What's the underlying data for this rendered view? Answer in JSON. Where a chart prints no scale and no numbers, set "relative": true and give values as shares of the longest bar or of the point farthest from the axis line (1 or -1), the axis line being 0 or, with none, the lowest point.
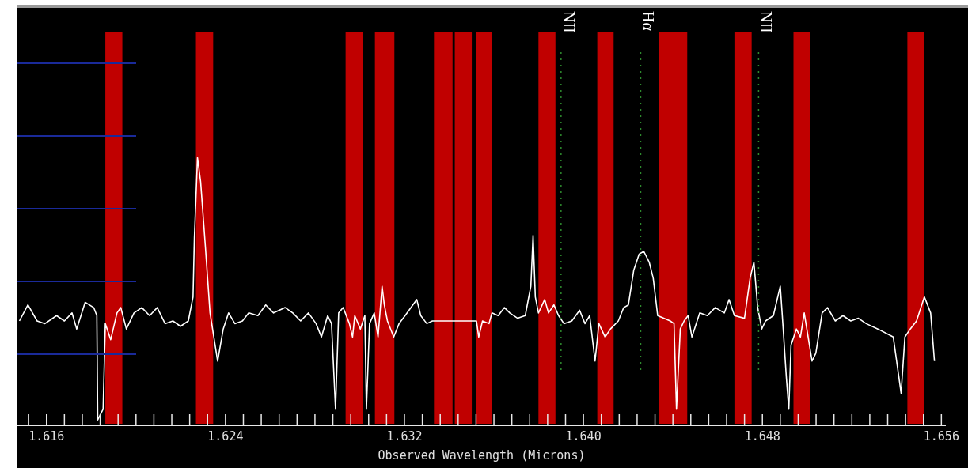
{
  "chart_data": {
    "type": "line",
    "relative": true,
    "xlabel": "Observed Wavelength (Microns)",
    "xlim": [
      1.6147,
      1.6562
    ],
    "xticks": [
      {
        "value": 1.6152,
        "label": null
      },
      {
        "value": 1.616,
        "label": "1.616"
      },
      {
        "value": 1.6168,
        "label": null
      },
      {
        "value": 1.6176,
        "label": null
      },
      {
        "value": 1.6184,
        "label": null
      },
      {
        "value": 1.6192,
        "label": null
      },
      {
        "value": 1.62,
        "label": null
      },
      {
        "value": 1.6208,
        "label": null
      },
      {
        "value": 1.6216,
        "label": null
      },
      {
        "value": 1.6224,
        "label": null
      },
      {
        "value": 1.6232,
        "label": null
      },
      {
        "value": 1.624,
        "label": "1.624"
      },
      {
        "value": 1.6248,
        "label": null
      },
      {
        "value": 1.6256,
        "label": null
      },
      {
        "value": 1.6264,
        "label": null
      },
      {
        "value": 1.6272,
        "label": null
      },
      {
        "value": 1.628,
        "label": null
      },
      {
        "value": 1.6288,
        "label": null
      },
      {
        "value": 1.6296,
        "label": null
      },
      {
        "value": 1.6304,
        "label": null
      },
      {
        "value": 1.6312,
        "label": null
      },
      {
        "value": 1.632,
        "label": "1.632"
      },
      {
        "value": 1.6328,
        "label": null
      },
      {
        "value": 1.6336,
        "label": null
      },
      {
        "value": 1.6344,
        "label": null
      },
      {
        "value": 1.6352,
        "label": null
      },
      {
        "value": 1.636,
        "label": null
      },
      {
        "value": 1.6368,
        "label": null
      },
      {
        "value": 1.6376,
        "label": null
      },
      {
        "value": 1.6384,
        "label": null
      },
      {
        "value": 1.6392,
        "label": null
      },
      {
        "value": 1.64,
        "label": "1.640"
      },
      {
        "value": 1.6408,
        "label": null
      },
      {
        "value": 1.6416,
        "label": null
      },
      {
        "value": 1.6424,
        "label": null
      },
      {
        "value": 1.6432,
        "label": null
      },
      {
        "value": 1.644,
        "label": null
      },
      {
        "value": 1.6448,
        "label": null
      },
      {
        "value": 1.6456,
        "label": null
      },
      {
        "value": 1.6464,
        "label": null
      },
      {
        "value": 1.6472,
        "label": null
      },
      {
        "value": 1.648,
        "label": "1.648"
      },
      {
        "value": 1.6488,
        "label": null
      },
      {
        "value": 1.6496,
        "label": null
      },
      {
        "value": 1.6504,
        "label": null
      },
      {
        "value": 1.6512,
        "label": null
      },
      {
        "value": 1.652,
        "label": null
      },
      {
        "value": 1.6528,
        "label": null
      },
      {
        "value": 1.6536,
        "label": null
      },
      {
        "value": 1.6544,
        "label": null
      },
      {
        "value": 1.6552,
        "label": null
      },
      {
        "value": 1.656,
        "label": "1.656"
      }
    ],
    "series": [
      {
        "color": "#ffffff",
        "x": [
          1.61479,
          1.61517,
          1.61558,
          1.61593,
          1.61645,
          1.6168,
          1.61714,
          1.61735,
          1.61773,
          1.61811,
          1.61825,
          1.61829,
          1.61853,
          1.61863,
          1.61887,
          1.61915,
          1.61932,
          1.61957,
          1.61991,
          1.62026,
          1.62061,
          1.62095,
          1.6213,
          1.62165,
          1.62199,
          1.62234,
          1.62248,
          1.62255,
          1.62261,
          1.62275,
          1.62289,
          1.6231,
          1.62331,
          1.62348,
          1.62365,
          1.6239,
          1.62414,
          1.62442,
          1.62476,
          1.62504,
          1.62545,
          1.6258,
          1.62615,
          1.62667,
          1.62701,
          1.62736,
          1.62771,
          1.62805,
          1.62829,
          1.62857,
          1.62874,
          1.62892,
          1.62906,
          1.62926,
          1.62954,
          1.62968,
          1.62978,
          1.63003,
          1.63023,
          1.6303,
          1.63044,
          1.63065,
          1.63082,
          1.631,
          1.6311,
          1.63124,
          1.63152,
          1.63176,
          1.63203,
          1.63255,
          1.63273,
          1.633,
          1.63325,
          1.63335,
          1.63522,
          1.63532,
          1.63549,
          1.63578,
          1.63591,
          1.63619,
          1.63647,
          1.63671,
          1.63706,
          1.6374,
          1.63765,
          1.63775,
          1.63785,
          1.63799,
          1.63827,
          1.63844,
          1.63868,
          1.63889,
          1.63913,
          1.63948,
          1.63983,
          1.64007,
          1.64028,
          1.64052,
          1.64069,
          1.64097,
          1.64121,
          1.64156,
          1.6418,
          1.64201,
          1.64225,
          1.64249,
          1.6427,
          1.64294,
          1.64312,
          1.64332,
          1.64388,
          1.64405,
          1.64416,
          1.64433,
          1.6445,
          1.64468,
          1.64485,
          1.6452,
          1.64554,
          1.64589,
          1.6463,
          1.64651,
          1.64675,
          1.6472,
          1.64745,
          1.64762,
          1.64779,
          1.64797,
          1.64814,
          1.64849,
          1.6488,
          1.64893,
          1.64907,
          1.64918,
          1.64928,
          1.64952,
          1.6497,
          1.64987,
          1.65022,
          1.65039,
          1.65067,
          1.65091,
          1.65126,
          1.6516,
          1.65195,
          1.65229,
          1.65264,
          1.65316,
          1.65385,
          1.6542,
          1.65437,
          1.65461,
          1.65489,
          1.65524,
          1.65552,
          1.65569
        ],
        "values": [
          0.39,
          0.45,
          0.39,
          0.38,
          0.41,
          0.39,
          0.42,
          0.36,
          0.46,
          0.44,
          0.41,
          0.02,
          0.06,
          0.38,
          0.32,
          0.42,
          0.44,
          0.36,
          0.42,
          0.44,
          0.41,
          0.44,
          0.38,
          0.39,
          0.37,
          0.39,
          0.45,
          0.48,
          0.7,
          1,
          0.91,
          0.67,
          0.42,
          0.33,
          0.24,
          0.36,
          0.42,
          0.38,
          0.39,
          0.42,
          0.41,
          0.45,
          0.42,
          0.44,
          0.42,
          0.39,
          0.42,
          0.38,
          0.33,
          0.41,
          0.38,
          0.06,
          0.42,
          0.44,
          0.38,
          0.33,
          0.41,
          0.36,
          0.41,
          0.06,
          0.38,
          0.42,
          0.33,
          0.52,
          0.45,
          0.39,
          0.33,
          0.38,
          0.41,
          0.47,
          0.41,
          0.38,
          0.39,
          0.39,
          0.39,
          0.33,
          0.39,
          0.38,
          0.42,
          0.41,
          0.44,
          0.42,
          0.4,
          0.41,
          0.52,
          0.71,
          0.48,
          0.42,
          0.47,
          0.42,
          0.45,
          0.41,
          0.38,
          0.39,
          0.43,
          0.38,
          0.41,
          0.24,
          0.38,
          0.33,
          0.36,
          0.39,
          0.44,
          0.45,
          0.58,
          0.64,
          0.65,
          0.61,
          0.55,
          0.41,
          0.39,
          0.38,
          0.06,
          0.36,
          0.39,
          0.41,
          0.33,
          0.42,
          0.41,
          0.44,
          0.42,
          0.47,
          0.41,
          0.4,
          0.55,
          0.61,
          0.44,
          0.36,
          0.39,
          0.41,
          0.52,
          0.36,
          0.18,
          0.06,
          0.3,
          0.36,
          0.33,
          0.42,
          0.24,
          0.27,
          0.42,
          0.44,
          0.39,
          0.41,
          0.39,
          0.4,
          0.38,
          0.36,
          0.33,
          0.12,
          0.33,
          0.36,
          0.39,
          0.48,
          0.42,
          0.24
        ]
      }
    ],
    "ref_lines": [
      {
        "axis": "x",
        "value": 1.639,
        "label": "NII",
        "color": "#2e8b2e",
        "line_style": "dotted"
      },
      {
        "axis": "x",
        "value": 1.64256,
        "label": "Hα",
        "color": "#2e8b2e",
        "line_style": "dotted"
      },
      {
        "axis": "x",
        "value": 1.64783,
        "label": "NII",
        "color": "#2e8b2e",
        "line_style": "dotted"
      }
    ],
    "bands": [
      {
        "axis": "x",
        "from": 1.61863,
        "to": 1.61939,
        "color": "#c00000"
      },
      {
        "axis": "x",
        "from": 1.62268,
        "to": 1.62345,
        "color": "#c00000"
      },
      {
        "axis": "x",
        "from": 1.62937,
        "to": 1.63013,
        "color": "#c00000"
      },
      {
        "axis": "x",
        "from": 1.63068,
        "to": 1.63155,
        "color": "#c00000"
      },
      {
        "axis": "x",
        "from": 1.63332,
        "to": 1.63415,
        "color": "#c00000"
      },
      {
        "axis": "x",
        "from": 1.63425,
        "to": 1.63501,
        "color": "#c00000"
      },
      {
        "axis": "x",
        "from": 1.63519,
        "to": 1.63591,
        "color": "#c00000"
      },
      {
        "axis": "x",
        "from": 1.63799,
        "to": 1.63875,
        "color": "#c00000"
      },
      {
        "axis": "x",
        "from": 1.64062,
        "to": 1.64135,
        "color": "#c00000"
      },
      {
        "axis": "x",
        "from": 1.64336,
        "to": 1.64464,
        "color": "#c00000"
      },
      {
        "axis": "x",
        "from": 1.64675,
        "to": 1.64752,
        "color": "#c00000"
      },
      {
        "axis": "x",
        "from": 1.64939,
        "to": 1.65015,
        "color": "#c00000"
      },
      {
        "axis": "x",
        "from": 1.65448,
        "to": 1.65524,
        "color": "#c00000"
      }
    ]
  }
}
